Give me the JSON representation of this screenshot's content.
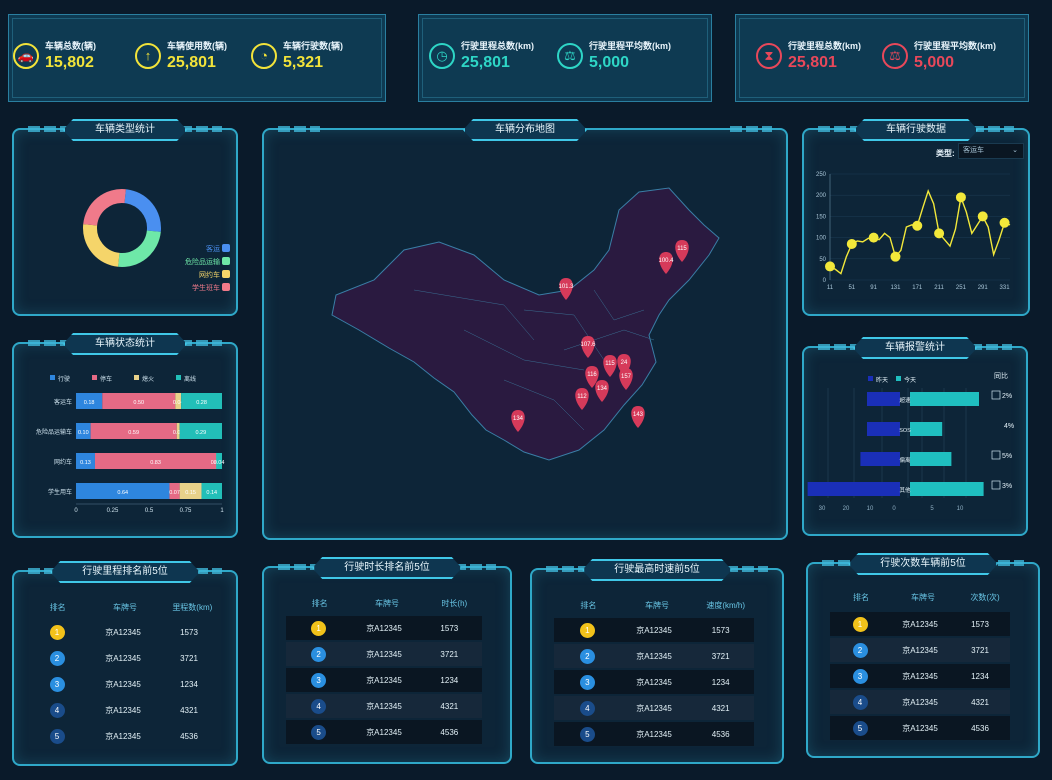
{
  "top_stats": {
    "card1": [
      {
        "label": "车辆总数(辆)",
        "value": "15,802",
        "icon": "car-icon",
        "color": "#f2e33a"
      },
      {
        "label": "车辆使用数(辆)",
        "value": "25,801",
        "icon": "upload-icon",
        "color": "#f2e33a"
      },
      {
        "label": "车辆行驶数(辆)",
        "value": "5,321",
        "icon": "pie-icon",
        "color": "#f2e33a"
      }
    ],
    "card2": [
      {
        "label": "行驶里程总数(km)",
        "value": "25,801",
        "icon": "timer-icon",
        "color": "#2ed6c6"
      },
      {
        "label": "行驶里程平均数(km)",
        "value": "5,000",
        "icon": "scale-icon",
        "color": "#2ed6c6"
      }
    ],
    "card3": [
      {
        "label": "行驶里程总数(km)",
        "value": "25,801",
        "icon": "hourglass-icon",
        "color": "#e8485a"
      },
      {
        "label": "行驶里程平均数(km)",
        "value": "5,000",
        "icon": "scale-icon",
        "color": "#e8485a"
      }
    ]
  },
  "panels": {
    "vehicle_type": "车辆类型统计",
    "map": "车辆分布地图",
    "driving_data": "车辆行驶数据",
    "vehicle_status": "车辆状态统计",
    "alarm": "车辆报警统计",
    "mileage_rank": "行驶里程排名前5位",
    "duration_rank": "行驶时长排名前5位",
    "speed_rank": "行驶最高时速前5位",
    "count_rank": "行驶次数车辆前5位"
  },
  "driving_filter": {
    "label": "类型:",
    "value": "客运车"
  },
  "donut": {
    "legend": [
      "客运",
      "危险品运输",
      "网约车",
      "学生班车"
    ],
    "colors": [
      "#4a8ff0",
      "#6ee8a8",
      "#f5d56a",
      "#f07a8a"
    ],
    "values": [
      25,
      25,
      25,
      25
    ]
  },
  "status_chart": {
    "legend": [
      "行驶",
      "停车",
      "熄火",
      "离线"
    ],
    "colors": [
      "#2e86de",
      "#e56a85",
      "#e8d28a",
      "#22bfb8"
    ],
    "categories": [
      "客运车",
      "危险品运输车",
      "网约车",
      "学生用车"
    ],
    "series": [
      [
        0.18,
        0.5,
        0.04,
        0.28
      ],
      [
        0.1,
        0.59,
        0.02,
        0.29
      ],
      [
        0.13,
        0.83,
        0.0,
        0.04
      ],
      [
        0.64,
        0.07,
        0.15,
        0.14
      ]
    ],
    "labels": [
      [
        "0.18",
        "0.50",
        "0.04",
        "0.28"
      ],
      [
        "0.10",
        "0.59",
        "0.02",
        "0.29"
      ],
      [
        "0.13",
        "0.83",
        "0.00",
        "0.04"
      ],
      [
        "0.64",
        "0.07",
        "0.15",
        "0.14"
      ]
    ],
    "x_ticks": [
      "0",
      "0.25",
      "0.5",
      "0.75",
      "1"
    ]
  },
  "chart_data": {
    "type": "line",
    "x": [
      11,
      21,
      31,
      41,
      51,
      61,
      71,
      81,
      91,
      101,
      111,
      121,
      131,
      141,
      151,
      161,
      171,
      181,
      191,
      201,
      211,
      221,
      231,
      241,
      251,
      261,
      271,
      281,
      291,
      301,
      311,
      321,
      331,
      341
    ],
    "y": [
      32,
      25,
      15,
      55,
      85,
      92,
      90,
      98,
      100,
      95,
      110,
      100,
      55,
      70,
      125,
      130,
      128,
      170,
      210,
      180,
      110,
      95,
      80,
      120,
      195,
      160,
      110,
      130,
      150,
      125,
      60,
      95,
      135,
      130
    ],
    "markers": [
      [
        11,
        32
      ],
      [
        51,
        85
      ],
      [
        91,
        100
      ],
      [
        131,
        55
      ],
      [
        171,
        128
      ],
      [
        211,
        110
      ],
      [
        251,
        195
      ],
      [
        291,
        150
      ],
      [
        331,
        135
      ]
    ],
    "x_ticks": [
      "11",
      "51",
      "91",
      "131",
      "171",
      "211",
      "251",
      "291",
      "331"
    ],
    "y_ticks": [
      "0",
      "50",
      "100",
      "150",
      "200",
      "250"
    ],
    "ylim": [
      0,
      250
    ]
  },
  "alarm_chart": {
    "legend": [
      "昨天",
      "今天"
    ],
    "colors": [
      "#1a2fb8",
      "#1fbfc0"
    ],
    "categories": [
      "超速",
      "SOS",
      "偏离",
      "其他"
    ],
    "yesterday": [
      10,
      10,
      12,
      28
    ],
    "today": [
      15,
      7,
      9,
      16
    ],
    "ratio_title": "同比",
    "ratios": [
      "2%",
      "4%",
      "5%",
      "3%"
    ],
    "ratio_checkbox": [
      true,
      false,
      true,
      true
    ],
    "x_ticks_left": [
      "30",
      "20",
      "10",
      "0"
    ],
    "x_ticks_right": [
      "5",
      "10"
    ]
  },
  "map": {
    "markers": [
      {
        "label": "115"
      },
      {
        "label": "100.4"
      },
      {
        "label": "101.3"
      },
      {
        "label": "107.6"
      },
      {
        "label": "115"
      },
      {
        "label": "24"
      },
      {
        "label": "116"
      },
      {
        "label": "157"
      },
      {
        "label": "134"
      },
      {
        "label": "112"
      },
      {
        "label": "143"
      },
      {
        "label": "134"
      }
    ],
    "fill": "#2a1a40",
    "marker_color": "#d63a5a"
  },
  "rankings": {
    "mileage": {
      "headers": [
        "排名",
        "车牌号",
        "里程数(km)"
      ],
      "rows": [
        [
          "1",
          "京A12345",
          "1573"
        ],
        [
          "2",
          "京A12345",
          "3721"
        ],
        [
          "3",
          "京A12345",
          "1234"
        ],
        [
          "4",
          "京A12345",
          "4321"
        ],
        [
          "5",
          "京A12345",
          "4536"
        ]
      ]
    },
    "duration": {
      "headers": [
        "排名",
        "车牌号",
        "时长(h)"
      ],
      "rows": [
        [
          "1",
          "京A12345",
          "1573"
        ],
        [
          "2",
          "京A12345",
          "3721"
        ],
        [
          "3",
          "京A12345",
          "1234"
        ],
        [
          "4",
          "京A12345",
          "4321"
        ],
        [
          "5",
          "京A12345",
          "4536"
        ]
      ]
    },
    "speed": {
      "headers": [
        "排名",
        "车牌号",
        "速度(km/h)"
      ],
      "rows": [
        [
          "1",
          "京A12345",
          "1573"
        ],
        [
          "2",
          "京A12345",
          "3721"
        ],
        [
          "3",
          "京A12345",
          "1234"
        ],
        [
          "4",
          "京A12345",
          "4321"
        ],
        [
          "5",
          "京A12345",
          "4536"
        ]
      ]
    },
    "count": {
      "headers": [
        "排名",
        "车牌号",
        "次数(次)"
      ],
      "rows": [
        [
          "1",
          "京A12345",
          "1573"
        ],
        [
          "2",
          "京A12345",
          "3721"
        ],
        [
          "3",
          "京A12345",
          "1234"
        ],
        [
          "4",
          "京A12345",
          "4321"
        ],
        [
          "5",
          "京A12345",
          "4536"
        ]
      ]
    }
  },
  "badge_colors": [
    "#f2c21a",
    "#2a8fe0",
    "#2a8fe0",
    "#1a4c8a",
    "#1a4c8a"
  ]
}
